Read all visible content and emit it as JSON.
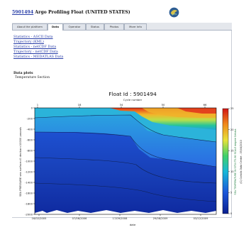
{
  "header": {
    "float_id_link": "5901494",
    "title_rest": " Argo Profiling Float (UNITED STATES)",
    "logo_icon": "argo-globe-logo-icon"
  },
  "tabs": [
    {
      "label": "About the platform",
      "active": false
    },
    {
      "label": "Data",
      "active": true
    },
    {
      "label": "Operator",
      "active": false
    },
    {
      "label": "Status",
      "active": false
    },
    {
      "label": "Photos",
      "active": false
    },
    {
      "label": "More Info",
      "active": false
    }
  ],
  "links": [
    "Statistics - ASCII Data",
    "Trajectory (KML)",
    "Statistics - netCDF Data",
    "Trajectory - netCDF Data",
    "Statistics - MEDATLAS Data"
  ],
  "section": {
    "heading": "Data plots",
    "subheading": "Temperature Section"
  },
  "chart_data": {
    "type": "heatmap",
    "title": "Float Id : 5901494",
    "top_axis_label": "Cycle number",
    "top_ticks": [
      "1",
      "18",
      "34",
      "50",
      "66"
    ],
    "xlabel": "date",
    "x_ticks": [
      "16/02/2005",
      "07/06/2006",
      "17/09/2008",
      "29/08/2009",
      "03/12/2009"
    ],
    "ylabel": "SEA PRESSURE sea surface=0 decibar=10000 pascals",
    "y_ticks": [
      0,
      -200,
      -400,
      -600,
      -800,
      -1000,
      -1200,
      -1400,
      -1600,
      -1800,
      -2000
    ],
    "ylim": [
      -2000,
      0
    ],
    "colorbar": {
      "label": "SEA TEMPERATURE IN SITU ITS-90 SCALE degree Celsius",
      "ticks": [
        0,
        5,
        10,
        15,
        20,
        25
      ],
      "range": [
        0,
        25
      ]
    },
    "credit": "(C) Coriolis Data Centre - 05/04/2010"
  }
}
